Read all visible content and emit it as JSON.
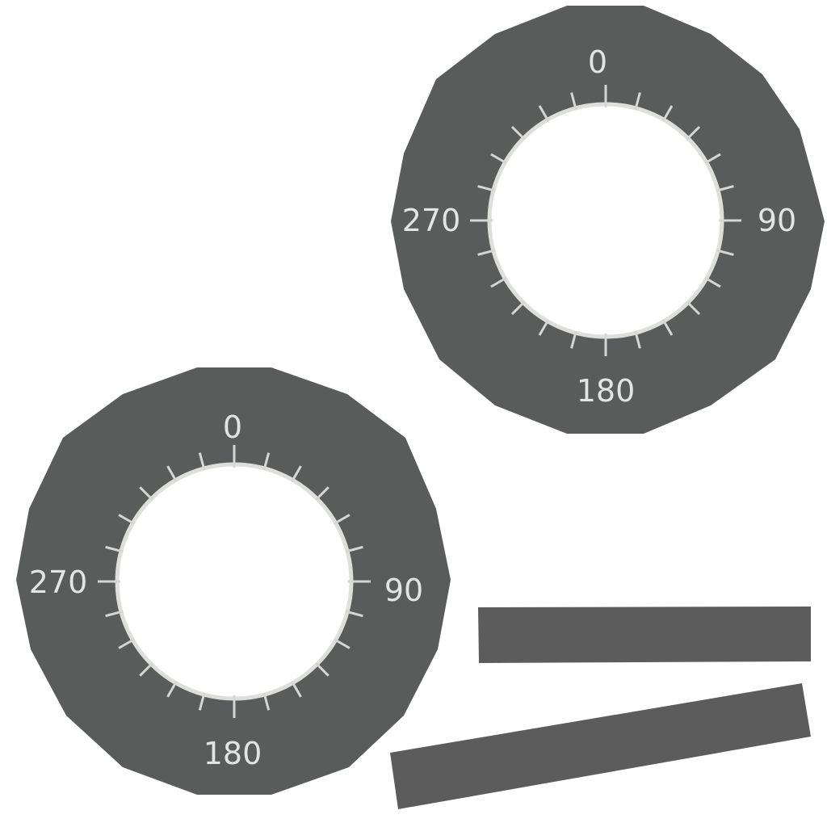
{
  "colors": {
    "plate": "#5a5b5b",
    "plate_edge": "#4f5050",
    "ring": "#dededb",
    "tick": "#d6d6d6",
    "label": "#e4e4e4",
    "strip": "#5c5c5c",
    "background": "#ffffff"
  },
  "dials": [
    {
      "labels": {
        "top": "0",
        "right": "90",
        "bottom": "180",
        "left": "270"
      },
      "tick_count": 24,
      "shape": "dodecagon"
    },
    {
      "labels": {
        "top": "0",
        "right": "90",
        "bottom": "180",
        "left": "270"
      },
      "tick_count": 24,
      "shape": "dodecagon"
    }
  ],
  "strips": [
    {
      "name": "straight-strip"
    },
    {
      "name": "tilted-strip"
    }
  ]
}
